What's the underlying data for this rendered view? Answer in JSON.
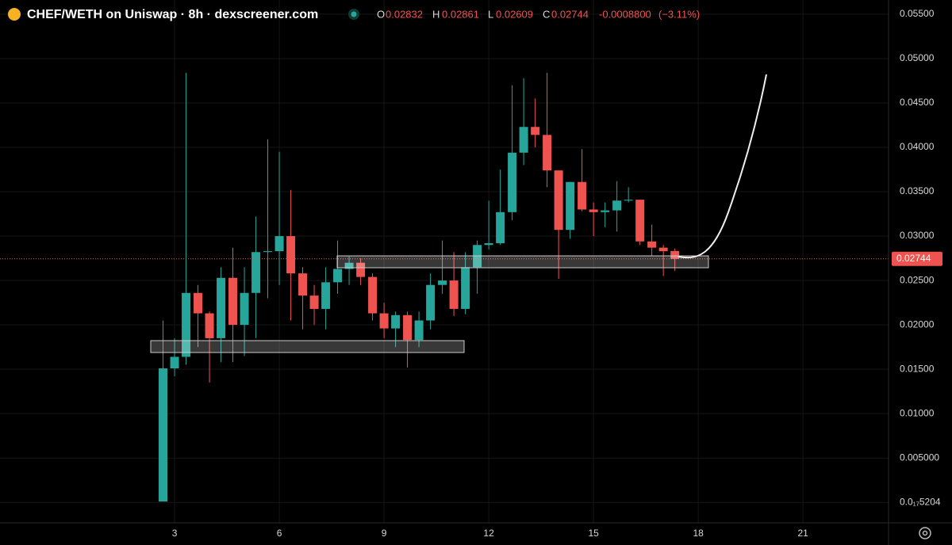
{
  "header": {
    "title": "CHEF/WETH on Uniswap · 8h · dexscreener.com",
    "ohlc_labels": [
      "O",
      "H",
      "L",
      "C"
    ],
    "change": "-0.0008800",
    "change_pct": "(−3.11%)"
  },
  "chart_data": {
    "type": "candlestick",
    "x": [
      2.67,
      3.0,
      3.33,
      3.67,
      4.0,
      4.33,
      4.67,
      5.0,
      5.33,
      5.67,
      6.0,
      6.33,
      6.67,
      7.0,
      7.33,
      7.67,
      8.0,
      8.33,
      8.67,
      9.0,
      9.33,
      9.67,
      10.0,
      10.33,
      10.67,
      11.0,
      11.33,
      11.67,
      12.0,
      12.33,
      12.67,
      13.0,
      13.33,
      13.67,
      14.0,
      14.33,
      14.67,
      15.0,
      15.33,
      15.67,
      16.0,
      16.33,
      16.67,
      17.0,
      17.33
    ],
    "open": [
      0.0001,
      0.0151,
      0.0164,
      0.0236,
      0.0213,
      0.0185,
      0.0253,
      0.02,
      0.0236,
      0.0282,
      0.0283,
      0.03,
      0.0258,
      0.0233,
      0.0218,
      0.0248,
      0.0263,
      0.027,
      0.0254,
      0.0213,
      0.0196,
      0.0211,
      0.0183,
      0.0205,
      0.0245,
      0.025,
      0.0218,
      0.0265,
      0.029,
      0.0292,
      0.0327,
      0.0394,
      0.0423,
      0.0414,
      0.0374,
      0.0307,
      0.0361,
      0.033,
      0.0327,
      0.0329,
      0.034,
      0.0341,
      0.0294,
      0.0287,
      0.02832
    ],
    "high": [
      0.0205,
      0.0185,
      0.0484,
      0.0245,
      0.0215,
      0.0265,
      0.0287,
      0.0265,
      0.0322,
      0.0409,
      0.0395,
      0.0352,
      0.0265,
      0.0245,
      0.0265,
      0.0295,
      0.0277,
      0.0275,
      0.0258,
      0.0225,
      0.0215,
      0.0215,
      0.0215,
      0.0258,
      0.0295,
      0.0282,
      0.0282,
      0.0295,
      0.034,
      0.0375,
      0.047,
      0.0478,
      0.0455,
      0.0484,
      0.0374,
      0.0361,
      0.0398,
      0.0338,
      0.0338,
      0.0362,
      0.0355,
      0.0341,
      0.0313,
      0.029,
      0.02861
    ],
    "low": [
      0.0001,
      0.0142,
      0.0155,
      0.0175,
      0.0135,
      0.0158,
      0.0158,
      0.0165,
      0.0185,
      0.023,
      0.0245,
      0.0205,
      0.0195,
      0.02,
      0.0195,
      0.0235,
      0.0245,
      0.0245,
      0.0205,
      0.0185,
      0.0175,
      0.0152,
      0.0175,
      0.0195,
      0.0235,
      0.021,
      0.0212,
      0.0235,
      0.0285,
      0.029,
      0.0318,
      0.038,
      0.04,
      0.0355,
      0.0252,
      0.0297,
      0.0328,
      0.03,
      0.031,
      0.0305,
      0.0338,
      0.029,
      0.0278,
      0.0255,
      0.02609
    ],
    "close": [
      0.0151,
      0.0164,
      0.0236,
      0.0213,
      0.0185,
      0.0253,
      0.02,
      0.0236,
      0.0282,
      0.0283,
      0.03,
      0.0258,
      0.0233,
      0.0218,
      0.0248,
      0.0263,
      0.027,
      0.0254,
      0.0213,
      0.0196,
      0.0211,
      0.0183,
      0.0205,
      0.0245,
      0.025,
      0.0218,
      0.0265,
      0.029,
      0.0292,
      0.0327,
      0.0394,
      0.0423,
      0.0414,
      0.0374,
      0.0307,
      0.0361,
      0.033,
      0.0327,
      0.0329,
      0.034,
      0.0341,
      0.0294,
      0.0287,
      0.0283,
      0.02744
    ],
    "up_color": "#26a69a",
    "down_color": "#ef5350",
    "xlim": [
      -2,
      23.45
    ],
    "xticks": [
      3,
      6,
      9,
      12,
      15,
      18,
      21
    ],
    "ylim": [
      -0.0023,
      0.0566
    ],
    "yticks": [
      {
        "value": 5.204e-18,
        "label": "0.0₁₇5204"
      },
      {
        "value": 0.005,
        "label": "0.005000"
      },
      {
        "value": 0.01,
        "label": "0.01000"
      },
      {
        "value": 0.015,
        "label": "0.01500"
      },
      {
        "value": 0.02,
        "label": "0.02000"
      },
      {
        "value": 0.025,
        "label": "0.02500"
      },
      {
        "value": 0.03,
        "label": "0.03000"
      },
      {
        "value": 0.035,
        "label": "0.03500"
      },
      {
        "value": 0.04,
        "label": "0.04000"
      },
      {
        "value": 0.045,
        "label": "0.04500"
      },
      {
        "value": 0.05,
        "label": "0.05000"
      },
      {
        "value": 0.055,
        "label": "0.05500"
      }
    ],
    "grid": true
  }
}
